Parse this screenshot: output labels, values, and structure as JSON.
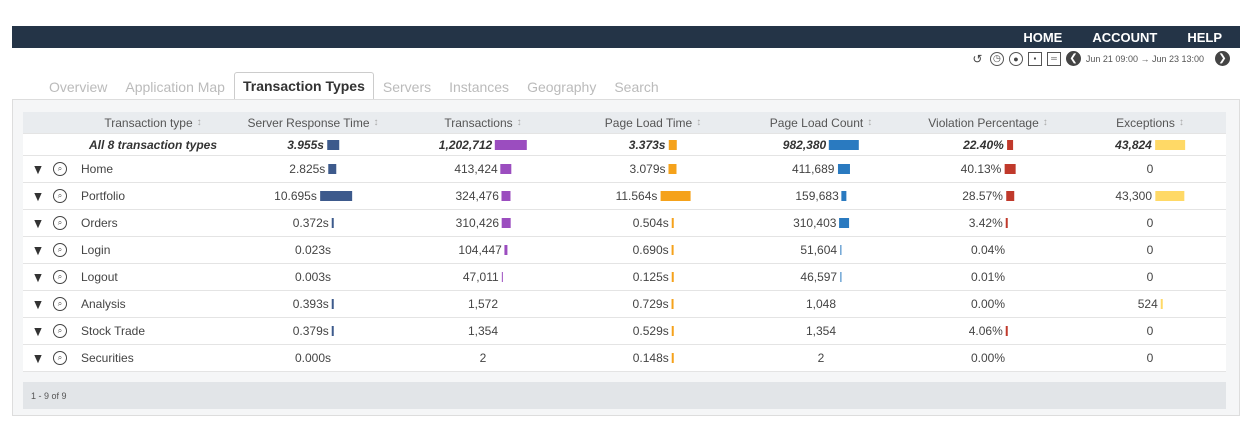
{
  "nav": {
    "home": "HOME",
    "account": "ACCOUNT",
    "help": "HELP"
  },
  "toolbar": {
    "time_range": "Jun 21 09:00 → Jun 23 13:00",
    "icons": [
      "history-icon",
      "clock-icon",
      "clock-alt-icon",
      "window-icon",
      "layout-icon",
      "prev-icon",
      "next-icon"
    ]
  },
  "tabs": [
    "Overview",
    "Application Map",
    "Transaction Types",
    "Servers",
    "Instances",
    "Geography",
    "Search"
  ],
  "active_tab": "Transaction Types",
  "columns": [
    "Transaction type",
    "Server Response Time",
    "Transactions",
    "Page Load Time",
    "Page Load Count",
    "Violation Percentage",
    "Exceptions"
  ],
  "sort_glyph": "↕",
  "colors": {
    "srt": "#3d5a8c",
    "tx": "#9b4dbf",
    "plt": "#f5a21b",
    "plc": "#2a7ac0",
    "viol": "#c0392b",
    "exc": "#ffd966"
  },
  "totals": {
    "name": "All 8 transaction types",
    "srt": "3.955s",
    "tx": "1,202,712",
    "plt": "3.373s",
    "plc": "982,380",
    "viol": "22.40%",
    "exc": "43,824"
  },
  "totals_values": [
    3.955,
    1202712,
    3.373,
    982380,
    22.4,
    43824
  ],
  "rows": [
    {
      "name": "Home",
      "srt": "2.825s",
      "tx": "413,424",
      "plt": "3.079s",
      "plc": "411,689",
      "viol": "40.13%",
      "exc": "0",
      "v": [
        2.825,
        413424,
        3.079,
        411689,
        40.13,
        0
      ]
    },
    {
      "name": "Portfolio",
      "srt": "10.695s",
      "tx": "324,476",
      "plt": "11.564s",
      "plc": "159,683",
      "viol": "28.57%",
      "exc": "43,300",
      "v": [
        10.695,
        324476,
        11.564,
        159683,
        28.57,
        43300
      ]
    },
    {
      "name": "Orders",
      "srt": "0.372s",
      "tx": "310,426",
      "plt": "0.504s",
      "plc": "310,403",
      "viol": "3.42%",
      "exc": "0",
      "v": [
        0.372,
        310426,
        0.504,
        310403,
        3.42,
        0
      ]
    },
    {
      "name": "Login",
      "srt": "0.023s",
      "tx": "104,447",
      "plt": "0.690s",
      "plc": "51,604",
      "viol": "0.04%",
      "exc": "0",
      "v": [
        0.023,
        104447,
        0.69,
        51604,
        0.04,
        0
      ]
    },
    {
      "name": "Logout",
      "srt": "0.003s",
      "tx": "47,011",
      "plt": "0.125s",
      "plc": "46,597",
      "viol": "0.01%",
      "exc": "0",
      "v": [
        0.003,
        47011,
        0.125,
        46597,
        0.01,
        0
      ]
    },
    {
      "name": "Analysis",
      "srt": "0.393s",
      "tx": "1,572",
      "plt": "0.729s",
      "plc": "1,048",
      "viol": "0.00%",
      "exc": "524",
      "v": [
        0.393,
        1572,
        0.729,
        1048,
        0,
        524
      ]
    },
    {
      "name": "Stock Trade",
      "srt": "0.379s",
      "tx": "1,354",
      "plt": "0.529s",
      "plc": "1,354",
      "viol": "4.06%",
      "exc": "0",
      "v": [
        0.379,
        1354,
        0.529,
        1354,
        4.06,
        0
      ]
    },
    {
      "name": "Securities",
      "srt": "0.000s",
      "tx": "2",
      "plt": "0.148s",
      "plc": "2",
      "viol": "0.00%",
      "exc": "0",
      "v": [
        0,
        2,
        0.148,
        2,
        0,
        0
      ]
    }
  ],
  "footer": "1 - 9 of 9"
}
